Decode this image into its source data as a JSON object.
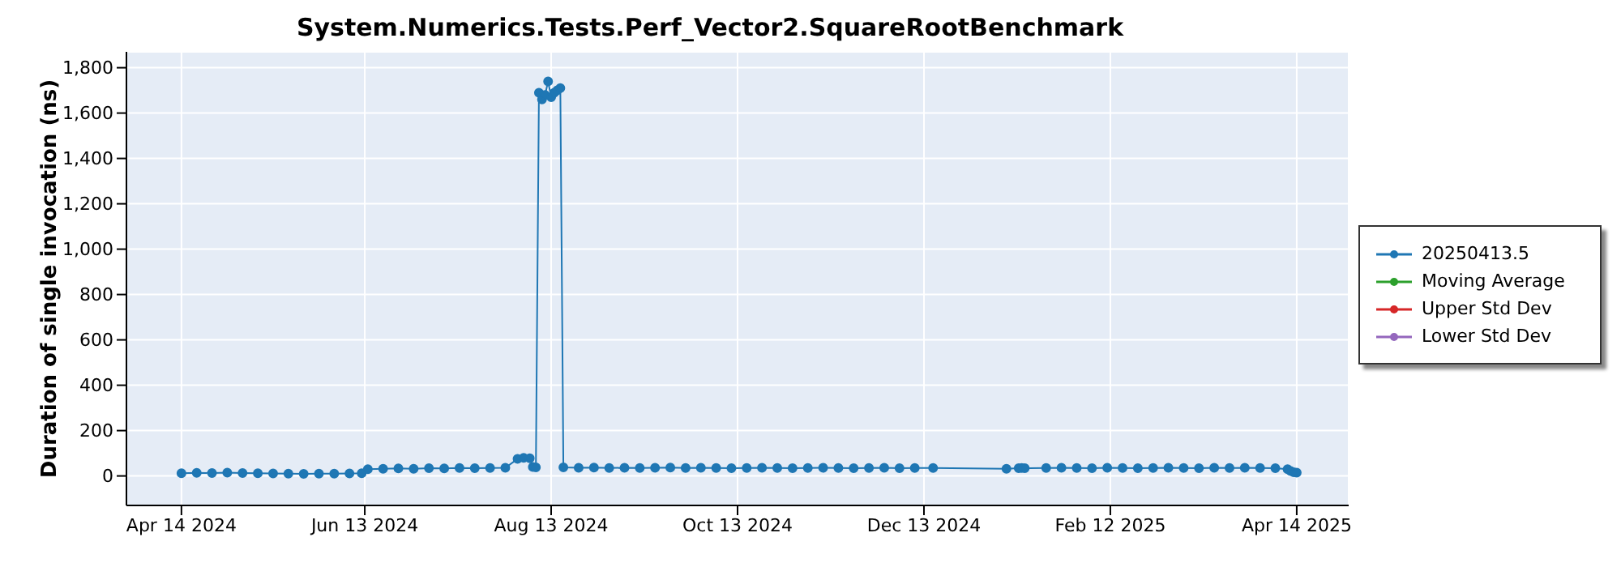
{
  "chart_data": {
    "type": "line",
    "title": "System.Numerics.Tests.Perf_Vector2.SquareRootBenchmark",
    "ylabel": "Duration of single invocation (ns)",
    "x": [
      "2024-04-14",
      "2024-04-19",
      "2024-04-24",
      "2024-04-29",
      "2024-05-04",
      "2024-05-09",
      "2024-05-14",
      "2024-05-19",
      "2024-05-24",
      "2024-05-29",
      "2024-06-03",
      "2024-06-08",
      "2024-06-12",
      "2024-06-14",
      "2024-06-19",
      "2024-06-24",
      "2024-06-29",
      "2024-07-04",
      "2024-07-09",
      "2024-07-14",
      "2024-07-19",
      "2024-07-24",
      "2024-07-29",
      "2024-08-02",
      "2024-08-04",
      "2024-08-06",
      "2024-08-07",
      "2024-08-08",
      "2024-08-09",
      "2024-08-10",
      "2024-08-11",
      "2024-08-12",
      "2024-08-13",
      "2024-08-14",
      "2024-08-15",
      "2024-08-16",
      "2024-08-17",
      "2024-08-22",
      "2024-08-27",
      "2024-09-01",
      "2024-09-06",
      "2024-09-11",
      "2024-09-16",
      "2024-09-21",
      "2024-09-26",
      "2024-10-01",
      "2024-10-06",
      "2024-10-11",
      "2024-10-16",
      "2024-10-21",
      "2024-10-26",
      "2024-10-31",
      "2024-11-05",
      "2024-11-10",
      "2024-11-15",
      "2024-11-20",
      "2024-11-25",
      "2024-11-30",
      "2024-12-05",
      "2024-12-10",
      "2024-12-16",
      "2025-01-09",
      "2025-01-13",
      "2025-01-14",
      "2025-01-15",
      "2025-01-22",
      "2025-01-27",
      "2025-02-01",
      "2025-02-06",
      "2025-02-11",
      "2025-02-16",
      "2025-02-21",
      "2025-02-26",
      "2025-03-03",
      "2025-03-08",
      "2025-03-13",
      "2025-03-18",
      "2025-03-23",
      "2025-03-28",
      "2025-04-02",
      "2025-04-07",
      "2025-04-11",
      "2025-04-12",
      "2025-04-13",
      "2025-04-14"
    ],
    "series": [
      {
        "name": "20250413.5",
        "color": "#1f77b4",
        "values": [
          12,
          14,
          13,
          15,
          13,
          12,
          11,
          10,
          9,
          10,
          10,
          11,
          12,
          30,
          32,
          33,
          32,
          34,
          33,
          35,
          34,
          35,
          36,
          75,
          80,
          78,
          40,
          38,
          1690,
          1660,
          1680,
          1740,
          1670,
          1690,
          1700,
          1710,
          38,
          36,
          37,
          35,
          36,
          35,
          36,
          37,
          35,
          36,
          35,
          34,
          35,
          36,
          35,
          34,
          35,
          36,
          35,
          34,
          35,
          36,
          34,
          35,
          35,
          32,
          34,
          35,
          34,
          35,
          36,
          35,
          34,
          36,
          35,
          34,
          35,
          36,
          35,
          34,
          36,
          35,
          36,
          35,
          34,
          30,
          22,
          16,
          15
        ]
      },
      {
        "name": "Moving Average",
        "color": "#2ca02c",
        "values": [
          null,
          null,
          null,
          null,
          null,
          null,
          null,
          null,
          null,
          null,
          null,
          null,
          null,
          null,
          null,
          null,
          null,
          null,
          null,
          null,
          null,
          null,
          null,
          null,
          null,
          null,
          null,
          null,
          null,
          null,
          null,
          null,
          null,
          null,
          null,
          null,
          null,
          null,
          null,
          null,
          null,
          null,
          null,
          null,
          null,
          null,
          null,
          null,
          null,
          null,
          null,
          null,
          null,
          null,
          null,
          null,
          null,
          null,
          null,
          null,
          null,
          null,
          null,
          null,
          null,
          null,
          null,
          null,
          null,
          null,
          null,
          null,
          null,
          null,
          null,
          null,
          null,
          null,
          null,
          null,
          null,
          null,
          null,
          null,
          null
        ]
      },
      {
        "name": "Upper Std Dev",
        "color": "#d62728",
        "values": [
          null,
          null,
          null,
          null,
          null,
          null,
          null,
          null,
          null,
          null,
          null,
          null,
          null,
          null,
          null,
          null,
          null,
          null,
          null,
          null,
          null,
          null,
          null,
          null,
          null,
          null,
          null,
          null,
          null,
          null,
          null,
          null,
          null,
          null,
          null,
          null,
          null,
          null,
          null,
          null,
          null,
          null,
          null,
          null,
          null,
          null,
          null,
          null,
          null,
          null,
          null,
          null,
          null,
          null,
          null,
          null,
          null,
          null,
          null,
          null,
          null,
          null,
          null,
          null,
          null,
          null,
          null,
          null,
          null,
          null,
          null,
          null,
          null,
          null,
          null,
          null,
          null,
          null,
          null,
          null,
          null,
          null,
          null,
          null,
          null
        ]
      },
      {
        "name": "Lower Std Dev",
        "color": "#9467bd",
        "values": [
          null,
          null,
          null,
          null,
          null,
          null,
          null,
          null,
          null,
          null,
          null,
          null,
          null,
          null,
          null,
          null,
          null,
          null,
          null,
          null,
          null,
          null,
          null,
          null,
          null,
          null,
          null,
          null,
          null,
          null,
          null,
          null,
          null,
          null,
          null,
          null,
          null,
          null,
          null,
          null,
          null,
          null,
          null,
          null,
          null,
          null,
          null,
          null,
          null,
          null,
          null,
          null,
          null,
          null,
          null,
          null,
          null,
          null,
          null,
          null,
          null,
          null,
          null,
          null,
          null,
          null,
          null,
          null,
          null,
          null,
          null,
          null,
          null,
          null,
          null,
          null,
          null,
          null,
          null,
          null,
          null,
          null,
          null,
          null,
          null
        ]
      }
    ],
    "xlim": [
      "2024-03-27",
      "2025-05-01"
    ],
    "xticks": [
      {
        "value": "2024-04-14",
        "label": "Apr 14 2024"
      },
      {
        "value": "2024-06-13",
        "label": "Jun 13 2024"
      },
      {
        "value": "2024-08-13",
        "label": "Aug 13 2024"
      },
      {
        "value": "2024-10-13",
        "label": "Oct 13 2024"
      },
      {
        "value": "2024-12-13",
        "label": "Dec 13 2024"
      },
      {
        "value": "2025-02-12",
        "label": "Feb 12 2025"
      },
      {
        "value": "2025-04-14",
        "label": "Apr 14 2025"
      }
    ],
    "ylim": [
      -130,
      1870
    ],
    "yticks": [
      0,
      200,
      400,
      600,
      800,
      {
        "value": 1000,
        "label": "1,000"
      },
      {
        "value": 1200,
        "label": "1,200"
      },
      {
        "value": 1400,
        "label": "1,400"
      },
      {
        "value": 1600,
        "label": "1,600"
      },
      {
        "value": 1800,
        "label": "1,800"
      }
    ],
    "grid": true,
    "legend": "right",
    "marker": "circle",
    "line_style": "solid"
  }
}
